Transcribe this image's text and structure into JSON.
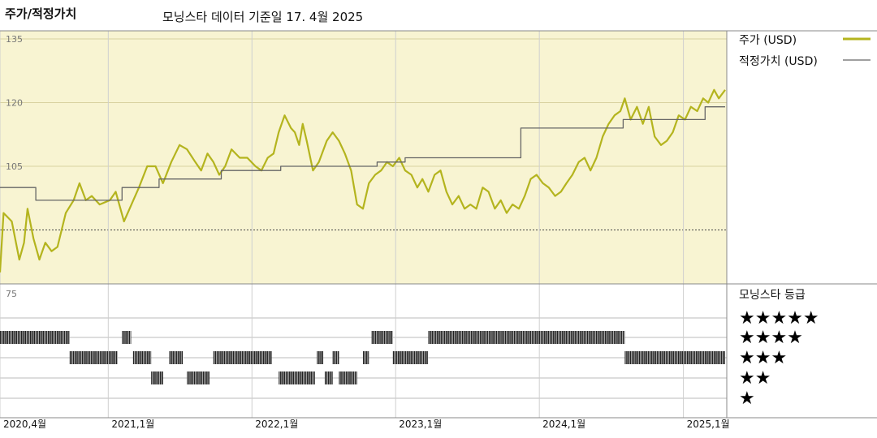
{
  "header": {
    "title": "주가/적정가치",
    "subtitle": "모닝스타 데이터 기준일 17. 4월 2025"
  },
  "legend": {
    "price_label": "주가 (USD)",
    "fair_value_label": "적정가치 (USD)",
    "rating_title": "모닝스타 등급",
    "star_rows": [
      "★★★★★",
      "★★★★",
      "★★★",
      "★★",
      "★"
    ]
  },
  "colors": {
    "price": "#b4b41e",
    "fair_value": "#666666",
    "upper_background": "#f8f4d2",
    "rating_bar": "#222222"
  },
  "chart_data": {
    "type": "line",
    "y_ticks": [
      "135",
      "120",
      "105",
      "75"
    ],
    "ylim": [
      75,
      135
    ],
    "x_range": [
      "2020-04-01",
      "2025-04-17"
    ],
    "x_ticks": [
      {
        "date": "2020-04-01",
        "label": "2020,4월"
      },
      {
        "date": "2021-01-01",
        "label": "2021,1월"
      },
      {
        "date": "2022-01-01",
        "label": "2022,1월"
      },
      {
        "date": "2023-01-01",
        "label": "2023,1월"
      },
      {
        "date": "2024-01-01",
        "label": "2024,1월"
      },
      {
        "date": "2025-01-01",
        "label": "2025,1월"
      }
    ],
    "series": [
      {
        "name": "주가 (USD)",
        "points": [
          [
            "2020-04-01",
            80
          ],
          [
            "2020-04-10",
            94
          ],
          [
            "2020-05-01",
            92
          ],
          [
            "2020-05-20",
            83
          ],
          [
            "2020-06-01",
            87
          ],
          [
            "2020-06-10",
            95
          ],
          [
            "2020-06-25",
            88
          ],
          [
            "2020-07-10",
            83
          ],
          [
            "2020-07-25",
            87
          ],
          [
            "2020-08-10",
            85
          ],
          [
            "2020-08-25",
            86
          ],
          [
            "2020-09-15",
            94
          ],
          [
            "2020-10-05",
            97
          ],
          [
            "2020-10-20",
            101
          ],
          [
            "2020-11-05",
            97
          ],
          [
            "2020-11-20",
            98
          ],
          [
            "2020-12-10",
            96
          ],
          [
            "2021-01-05",
            97
          ],
          [
            "2021-01-20",
            99
          ],
          [
            "2021-02-10",
            92
          ],
          [
            "2021-03-01",
            96
          ],
          [
            "2021-03-20",
            100
          ],
          [
            "2021-04-10",
            105
          ],
          [
            "2021-05-01",
            105
          ],
          [
            "2021-05-20",
            101
          ],
          [
            "2021-06-10",
            106
          ],
          [
            "2021-07-01",
            110
          ],
          [
            "2021-07-20",
            109
          ],
          [
            "2021-08-10",
            106
          ],
          [
            "2021-08-25",
            104
          ],
          [
            "2021-09-10",
            108
          ],
          [
            "2021-09-25",
            106
          ],
          [
            "2021-10-10",
            103
          ],
          [
            "2021-10-25",
            105
          ],
          [
            "2021-11-10",
            109
          ],
          [
            "2021-12-01",
            107
          ],
          [
            "2021-12-20",
            107
          ],
          [
            "2022-01-10",
            105
          ],
          [
            "2022-01-25",
            104
          ],
          [
            "2022-02-10",
            107
          ],
          [
            "2022-02-25",
            108
          ],
          [
            "2022-03-10",
            113
          ],
          [
            "2022-03-25",
            117
          ],
          [
            "2022-04-10",
            114
          ],
          [
            "2022-04-20",
            113
          ],
          [
            "2022-05-01",
            110
          ],
          [
            "2022-05-10",
            115
          ],
          [
            "2022-05-20",
            111
          ],
          [
            "2022-06-05",
            104
          ],
          [
            "2022-06-20",
            106
          ],
          [
            "2022-07-10",
            111
          ],
          [
            "2022-07-25",
            113
          ],
          [
            "2022-08-10",
            111
          ],
          [
            "2022-08-25",
            108
          ],
          [
            "2022-09-10",
            104
          ],
          [
            "2022-09-25",
            96
          ],
          [
            "2022-10-10",
            95
          ],
          [
            "2022-10-25",
            101
          ],
          [
            "2022-11-10",
            103
          ],
          [
            "2022-11-25",
            104
          ],
          [
            "2022-12-10",
            106
          ],
          [
            "2022-12-25",
            105
          ],
          [
            "2023-01-10",
            107
          ],
          [
            "2023-01-25",
            104
          ],
          [
            "2023-02-10",
            103
          ],
          [
            "2023-02-25",
            100
          ],
          [
            "2023-03-10",
            102
          ],
          [
            "2023-03-25",
            99
          ],
          [
            "2023-04-10",
            103
          ],
          [
            "2023-04-25",
            104
          ],
          [
            "2023-05-10",
            99
          ],
          [
            "2023-05-25",
            96
          ],
          [
            "2023-06-10",
            98
          ],
          [
            "2023-06-25",
            95
          ],
          [
            "2023-07-10",
            96
          ],
          [
            "2023-07-25",
            95
          ],
          [
            "2023-08-10",
            100
          ],
          [
            "2023-08-25",
            99
          ],
          [
            "2023-09-10",
            95
          ],
          [
            "2023-09-25",
            97
          ],
          [
            "2023-10-10",
            94
          ],
          [
            "2023-10-25",
            96
          ],
          [
            "2023-11-10",
            95
          ],
          [
            "2023-11-25",
            98
          ],
          [
            "2023-12-10",
            102
          ],
          [
            "2023-12-25",
            103
          ],
          [
            "2024-01-10",
            101
          ],
          [
            "2024-01-25",
            100
          ],
          [
            "2024-02-10",
            98
          ],
          [
            "2024-02-25",
            99
          ],
          [
            "2024-03-10",
            101
          ],
          [
            "2024-03-25",
            103
          ],
          [
            "2024-04-10",
            106
          ],
          [
            "2024-04-25",
            107
          ],
          [
            "2024-05-10",
            104
          ],
          [
            "2024-05-25",
            107
          ],
          [
            "2024-06-10",
            112
          ],
          [
            "2024-06-25",
            115
          ],
          [
            "2024-07-10",
            117
          ],
          [
            "2024-07-25",
            118
          ],
          [
            "2024-08-05",
            121
          ],
          [
            "2024-08-20",
            116
          ],
          [
            "2024-09-05",
            119
          ],
          [
            "2024-09-20",
            115
          ],
          [
            "2024-10-05",
            119
          ],
          [
            "2024-10-20",
            112
          ],
          [
            "2024-11-05",
            110
          ],
          [
            "2024-11-20",
            111
          ],
          [
            "2024-12-05",
            113
          ],
          [
            "2024-12-20",
            117
          ],
          [
            "2025-01-05",
            116
          ],
          [
            "2025-01-20",
            119
          ],
          [
            "2025-02-05",
            118
          ],
          [
            "2025-02-20",
            121
          ],
          [
            "2025-03-05",
            120
          ],
          [
            "2025-03-20",
            123
          ],
          [
            "2025-04-01",
            121
          ],
          [
            "2025-04-17",
            123
          ]
        ]
      },
      {
        "name": "적정가치 (USD)",
        "points": [
          [
            "2020-04-01",
            100
          ],
          [
            "2020-07-01",
            100
          ],
          [
            "2020-07-01",
            97
          ],
          [
            "2021-02-05",
            97
          ],
          [
            "2021-02-05",
            100
          ],
          [
            "2021-05-10",
            100
          ],
          [
            "2021-05-10",
            102
          ],
          [
            "2021-10-15",
            102
          ],
          [
            "2021-10-15",
            104
          ],
          [
            "2022-03-15",
            104
          ],
          [
            "2022-03-15",
            105
          ],
          [
            "2022-11-15",
            105
          ],
          [
            "2022-11-15",
            106
          ],
          [
            "2023-01-25",
            106
          ],
          [
            "2023-01-25",
            107
          ],
          [
            "2023-11-15",
            107
          ],
          [
            "2023-11-15",
            114
          ],
          [
            "2024-08-01",
            114
          ],
          [
            "2024-08-01",
            116
          ],
          [
            "2025-02-25",
            116
          ],
          [
            "2025-02-25",
            119
          ],
          [
            "2025-04-17",
            119
          ]
        ]
      }
    ],
    "rating_levels": [
      5,
      4,
      3,
      2,
      1
    ],
    "rating_segments": [
      {
        "stars": 4,
        "from": "2020-04-01",
        "to": "2020-09-25"
      },
      {
        "stars": 3,
        "from": "2020-09-25",
        "to": "2021-01-25"
      },
      {
        "stars": 4,
        "from": "2021-02-05",
        "to": "2021-02-28"
      },
      {
        "stars": 3,
        "from": "2021-03-05",
        "to": "2021-04-20"
      },
      {
        "stars": 2,
        "from": "2021-04-20",
        "to": "2021-05-20"
      },
      {
        "stars": 3,
        "from": "2021-06-05",
        "to": "2021-07-10"
      },
      {
        "stars": 2,
        "from": "2021-07-20",
        "to": "2021-09-15"
      },
      {
        "stars": 3,
        "from": "2021-09-25",
        "to": "2022-02-20"
      },
      {
        "stars": 2,
        "from": "2022-03-10",
        "to": "2022-06-10"
      },
      {
        "stars": 3,
        "from": "2022-06-15",
        "to": "2022-07-01"
      },
      {
        "stars": 2,
        "from": "2022-07-05",
        "to": "2022-07-25"
      },
      {
        "stars": 3,
        "from": "2022-07-25",
        "to": "2022-08-10"
      },
      {
        "stars": 2,
        "from": "2022-08-10",
        "to": "2022-09-25"
      },
      {
        "stars": 3,
        "from": "2022-10-10",
        "to": "2022-10-25"
      },
      {
        "stars": 4,
        "from": "2022-11-01",
        "to": "2022-12-25"
      },
      {
        "stars": 3,
        "from": "2022-12-25",
        "to": "2023-03-25"
      },
      {
        "stars": 4,
        "from": "2023-03-25",
        "to": "2024-08-05"
      },
      {
        "stars": 3,
        "from": "2024-08-05",
        "to": "2025-04-17"
      }
    ]
  }
}
